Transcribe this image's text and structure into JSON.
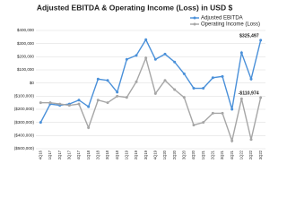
{
  "chart_data": {
    "type": "line",
    "title": "Adjusted EBITDA & Operating Income (Loss) in USD $",
    "categories": [
      "4Q16",
      "1Q17",
      "2Q17",
      "3Q17",
      "4Q17",
      "1Q18",
      "2Q18",
      "3Q18",
      "4Q18",
      "1Q19",
      "2Q19",
      "3Q19",
      "4Q19",
      "1Q20",
      "2Q20",
      "3Q20",
      "4Q20",
      "1Q21",
      "2Q21",
      "3Q21",
      "4Q21",
      "1Q22",
      "2Q22",
      "3Q22"
    ],
    "series": [
      {
        "name": "Adjusted EBITDA",
        "color": "#4a90d9",
        "values": [
          -300000,
          -160000,
          -170000,
          -160000,
          -130000,
          -180000,
          30000,
          20000,
          -70000,
          180000,
          210000,
          330000,
          180000,
          220000,
          160000,
          70000,
          -40000,
          -40000,
          40000,
          50000,
          -200000,
          230000,
          30000,
          325497
        ],
        "value_labels": [
          null,
          null,
          null,
          null,
          null,
          null,
          null,
          null,
          null,
          null,
          null,
          null,
          null,
          null,
          null,
          null,
          null,
          null,
          null,
          null,
          null,
          null,
          null,
          "$325,497"
        ]
      },
      {
        "name": "Operating Income (Loss)",
        "color": "#a6a6a6",
        "values": [
          -150000,
          -150000,
          -160000,
          -170000,
          -160000,
          -340000,
          -130000,
          -150000,
          -100000,
          -110000,
          10000,
          190000,
          -80000,
          20000,
          -50000,
          -110000,
          -320000,
          -300000,
          -230000,
          -230000,
          -440000,
          -120000,
          -430000,
          -110974
        ],
        "value_labels": [
          null,
          null,
          null,
          null,
          null,
          null,
          null,
          null,
          null,
          null,
          null,
          null,
          null,
          null,
          null,
          null,
          null,
          null,
          null,
          null,
          null,
          null,
          null,
          "-$110,974"
        ]
      }
    ],
    "ylim": [
      -500000,
      400000
    ],
    "yticks": [
      {
        "value": -500000,
        "label": "($500,000)"
      },
      {
        "value": -400000,
        "label": "($400,000)"
      },
      {
        "value": -300000,
        "label": "($300,000)"
      },
      {
        "value": -200000,
        "label": "($200,000)"
      },
      {
        "value": -100000,
        "label": "($100,000)"
      },
      {
        "value": 0,
        "label": "$0"
      },
      {
        "value": 100000,
        "label": "$100,000"
      },
      {
        "value": 200000,
        "label": "$200,000"
      },
      {
        "value": 300000,
        "label": "$300,000"
      },
      {
        "value": 400000,
        "label": "$400,000"
      }
    ],
    "grid": true,
    "legend": "top-right"
  }
}
